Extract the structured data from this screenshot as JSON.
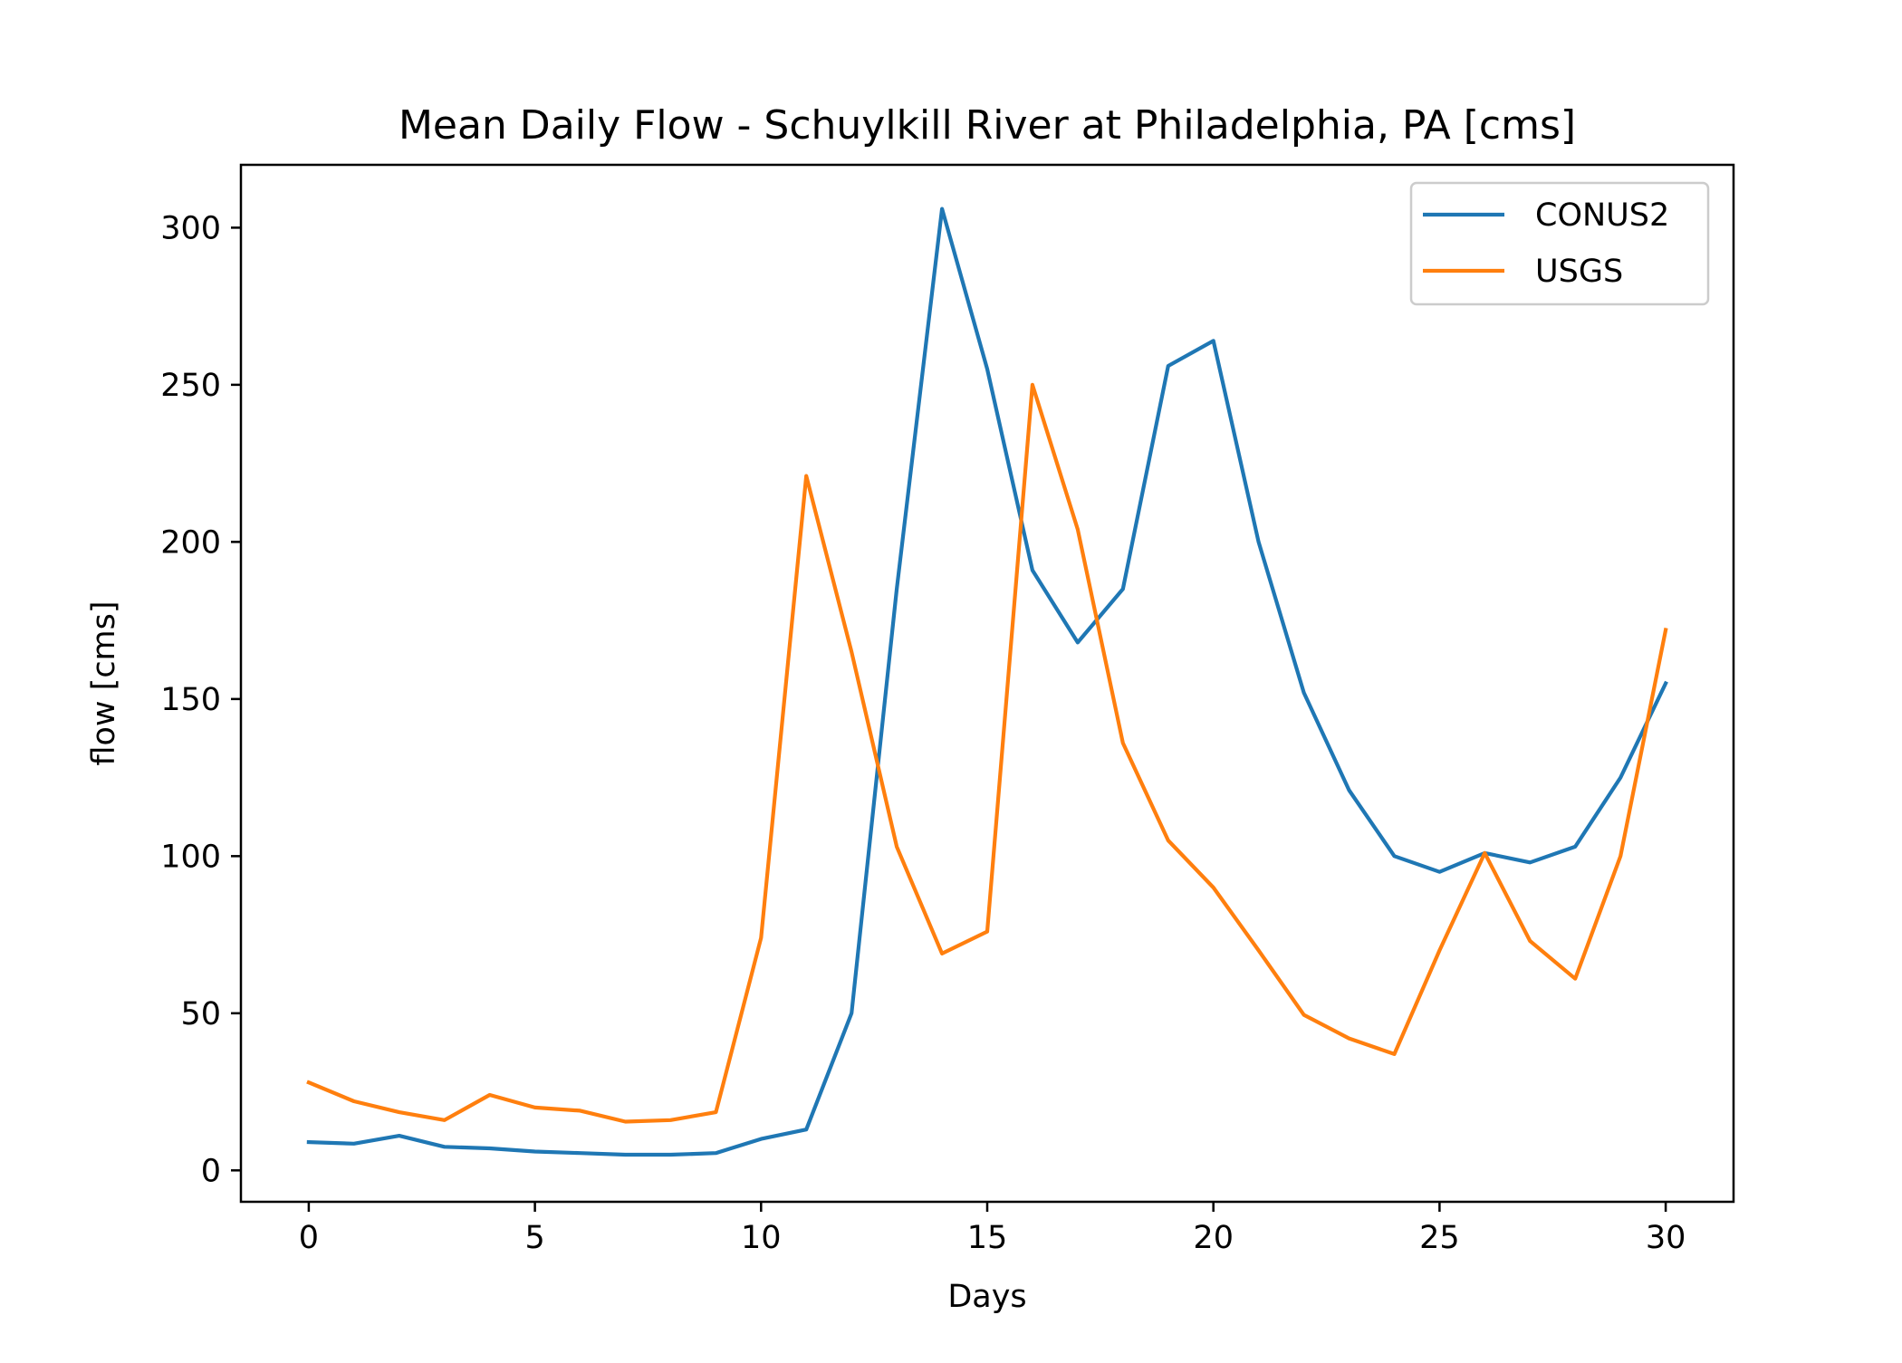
{
  "chart_data": {
    "type": "line",
    "title": "Mean Daily Flow - Schuylkill River at Philadelphia, PA [cms]",
    "xlabel": "Days",
    "ylabel": "flow [cms]",
    "xlim": [
      -1.5,
      31.5
    ],
    "ylim": [
      -10,
      320
    ],
    "xticks": [
      0,
      5,
      10,
      15,
      20,
      25,
      30
    ],
    "yticks": [
      0,
      50,
      100,
      150,
      200,
      250,
      300
    ],
    "grid": false,
    "legend_position": "top-right",
    "x": [
      0,
      1,
      2,
      3,
      4,
      5,
      6,
      7,
      8,
      9,
      10,
      11,
      12,
      13,
      14,
      15,
      16,
      17,
      18,
      19,
      20,
      21,
      22,
      23,
      24,
      25,
      26,
      27,
      28,
      29,
      30
    ],
    "series": [
      {
        "name": "CONUS2",
        "color": "#1f77b4",
        "values": [
          9,
          8.5,
          11,
          7.5,
          7,
          6,
          5.5,
          5,
          5,
          5.5,
          10,
          13,
          50,
          185,
          306,
          255,
          191,
          168,
          185,
          256,
          264,
          200,
          152,
          121,
          100,
          95,
          101,
          98,
          103,
          125,
          155
        ]
      },
      {
        "name": "USGS",
        "color": "#ff7f0e",
        "values": [
          28,
          22,
          18.5,
          16,
          24,
          20,
          19,
          15.5,
          16,
          18.5,
          74,
          221,
          165,
          103,
          69,
          76,
          250,
          204,
          136,
          105,
          90,
          70,
          49.5,
          42,
          37,
          70,
          101,
          73,
          61,
          100,
          172
        ]
      }
    ]
  }
}
